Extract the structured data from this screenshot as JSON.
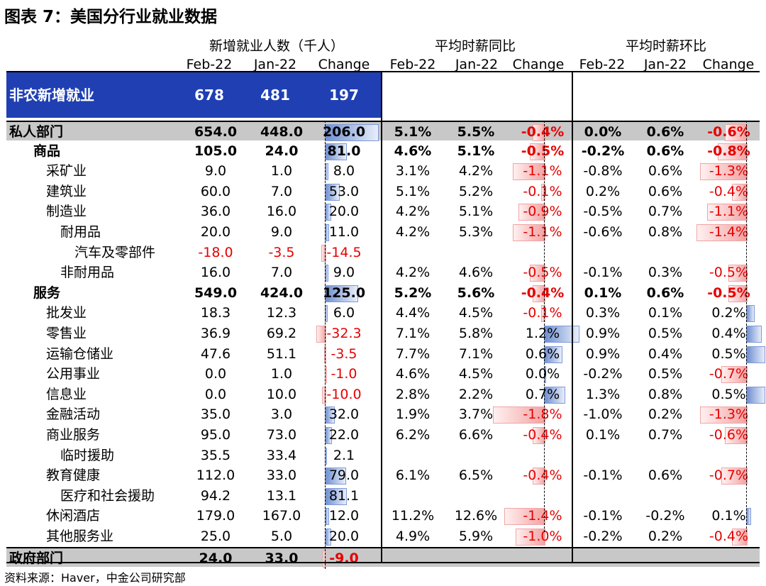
{
  "title": "图表 7：美国分行业就业数据",
  "group_headers": [
    "新增就业人数（千人）",
    "平均时薪同比",
    "平均时薪环比"
  ],
  "col_headers": [
    "Feb-22",
    "Jan-22",
    "Change",
    "Feb-22",
    "Jan-22",
    "Change",
    "Feb-22",
    "Jan-22",
    "Change"
  ],
  "summary_row": {
    "label": "非农新增就业",
    "feb": "678",
    "jan": "481",
    "chg": "197"
  },
  "rows": [
    {
      "label": "私人部门",
      "indent": 0,
      "style": "gray",
      "e1": "654.0",
      "e2": "448.0",
      "e3": "206.0",
      "e3v": 206.0,
      "y1": "5.1%",
      "y2": "5.5%",
      "y3": "-0.4%",
      "y3v": -0.4,
      "m1": "0.0%",
      "m2": "0.6%",
      "m3": "-0.6%",
      "m3v": -0.6
    },
    {
      "label": "商品",
      "indent": 1,
      "style": "bold",
      "e1": "105.0",
      "e2": "24.0",
      "e3": "81.0",
      "e3v": 81.0,
      "y1": "4.6%",
      "y2": "5.1%",
      "y3": "-0.5%",
      "y3v": -0.5,
      "m1": "-0.2%",
      "m2": "0.6%",
      "m3": "-0.8%",
      "m3v": -0.8
    },
    {
      "label": "采矿业",
      "indent": 2,
      "style": "",
      "e1": "9.0",
      "e2": "1.0",
      "e3": "8.0",
      "e3v": 8.0,
      "y1": "3.1%",
      "y2": "4.2%",
      "y3": "-1.1%",
      "y3v": -1.1,
      "m1": "-0.8%",
      "m2": "0.6%",
      "m3": "-1.3%",
      "m3v": -1.3
    },
    {
      "label": "建筑业",
      "indent": 2,
      "style": "",
      "e1": "60.0",
      "e2": "7.0",
      "e3": "53.0",
      "e3v": 53.0,
      "y1": "5.1%",
      "y2": "5.2%",
      "y3": "-0.1%",
      "y3v": -0.1,
      "m1": "0.2%",
      "m2": "0.6%",
      "m3": "-0.4%",
      "m3v": -0.4
    },
    {
      "label": "制造业",
      "indent": 2,
      "style": "",
      "e1": "36.0",
      "e2": "16.0",
      "e3": "20.0",
      "e3v": 20.0,
      "y1": "4.2%",
      "y2": "5.1%",
      "y3": "-0.9%",
      "y3v": -0.9,
      "m1": "-0.5%",
      "m2": "0.7%",
      "m3": "-1.1%",
      "m3v": -1.1
    },
    {
      "label": "耐用品",
      "indent": 3,
      "style": "",
      "e1": "20.0",
      "e2": "9.0",
      "e3": "11.0",
      "e3v": 11.0,
      "y1": "4.2%",
      "y2": "5.3%",
      "y3": "-1.1%",
      "y3v": -1.1,
      "m1": "-0.6%",
      "m2": "0.8%",
      "m3": "-1.4%",
      "m3v": -1.4
    },
    {
      "label": "汽车及零部件",
      "indent": 4,
      "style": "",
      "e1": "-18.0",
      "e2": "-3.5",
      "e3": "-14.5",
      "e3v": -14.5,
      "y1": "",
      "y2": "",
      "y3": "",
      "y3v": null,
      "m1": "",
      "m2": "",
      "m3": "",
      "m3v": null
    },
    {
      "label": "非耐用品",
      "indent": 3,
      "style": "",
      "e1": "16.0",
      "e2": "7.0",
      "e3": "9.0",
      "e3v": 9.0,
      "y1": "4.2%",
      "y2": "4.6%",
      "y3": "-0.5%",
      "y3v": -0.5,
      "m1": "-0.1%",
      "m2": "0.3%",
      "m3": "-0.5%",
      "m3v": -0.5
    },
    {
      "label": "服务",
      "indent": 1,
      "style": "bold",
      "e1": "549.0",
      "e2": "424.0",
      "e3": "125.0",
      "e3v": 125.0,
      "y1": "5.2%",
      "y2": "5.6%",
      "y3": "-0.4%",
      "y3v": -0.4,
      "m1": "0.1%",
      "m2": "0.6%",
      "m3": "-0.5%",
      "m3v": -0.5
    },
    {
      "label": "批发业",
      "indent": 2,
      "style": "",
      "e1": "18.3",
      "e2": "12.3",
      "e3": "6.0",
      "e3v": 6.0,
      "y1": "4.4%",
      "y2": "4.5%",
      "y3": "-0.1%",
      "y3v": -0.1,
      "m1": "0.3%",
      "m2": "0.1%",
      "m3": "0.2%",
      "m3v": 0.2
    },
    {
      "label": "零售业",
      "indent": 2,
      "style": "",
      "e1": "36.9",
      "e2": "69.2",
      "e3": "-32.3",
      "e3v": -32.3,
      "y1": "7.1%",
      "y2": "5.8%",
      "y3": "1.2%",
      "y3v": 1.2,
      "m1": "0.9%",
      "m2": "0.5%",
      "m3": "0.4%",
      "m3v": 0.4
    },
    {
      "label": "运输仓储业",
      "indent": 2,
      "style": "",
      "e1": "47.6",
      "e2": "51.1",
      "e3": "-3.5",
      "e3v": -3.5,
      "y1": "7.7%",
      "y2": "7.1%",
      "y3": "0.6%",
      "y3v": 0.6,
      "m1": "0.9%",
      "m2": "0.4%",
      "m3": "0.5%",
      "m3v": 0.5
    },
    {
      "label": "公用事业",
      "indent": 2,
      "style": "",
      "e1": "0.0",
      "e2": "1.0",
      "e3": "-1.0",
      "e3v": -1.0,
      "y1": "4.6%",
      "y2": "4.5%",
      "y3": "0.0%",
      "y3v": 0.0,
      "m1": "-0.2%",
      "m2": "0.5%",
      "m3": "-0.7%",
      "m3v": -0.7
    },
    {
      "label": "信息业",
      "indent": 2,
      "style": "",
      "e1": "0.0",
      "e2": "10.0",
      "e3": "-10.0",
      "e3v": -10.0,
      "y1": "2.8%",
      "y2": "2.2%",
      "y3": "0.7%",
      "y3v": 0.7,
      "m1": "1.3%",
      "m2": "0.8%",
      "m3": "0.5%",
      "m3v": 0.5
    },
    {
      "label": "金融活动",
      "indent": 2,
      "style": "",
      "e1": "35.0",
      "e2": "3.0",
      "e3": "32.0",
      "e3v": 32.0,
      "y1": "1.9%",
      "y2": "3.7%",
      "y3": "-1.8%",
      "y3v": -1.8,
      "m1": "-1.0%",
      "m2": "0.2%",
      "m3": "-1.3%",
      "m3v": -1.3
    },
    {
      "label": "商业服务",
      "indent": 2,
      "style": "",
      "e1": "95.0",
      "e2": "73.0",
      "e3": "22.0",
      "e3v": 22.0,
      "y1": "6.2%",
      "y2": "6.6%",
      "y3": "-0.4%",
      "y3v": -0.4,
      "m1": "0.1%",
      "m2": "0.7%",
      "m3": "-0.6%",
      "m3v": -0.6
    },
    {
      "label": "临时援助",
      "indent": 3,
      "style": "",
      "e1": "35.5",
      "e2": "33.4",
      "e3": "2.1",
      "e3v": 2.1,
      "y1": "",
      "y2": "",
      "y3": "",
      "y3v": null,
      "m1": "",
      "m2": "",
      "m3": "",
      "m3v": null
    },
    {
      "label": "教育健康",
      "indent": 2,
      "style": "",
      "e1": "112.0",
      "e2": "33.0",
      "e3": "79.0",
      "e3v": 79.0,
      "y1": "6.1%",
      "y2": "6.5%",
      "y3": "-0.4%",
      "y3v": -0.4,
      "m1": "-0.1%",
      "m2": "0.6%",
      "m3": "-0.7%",
      "m3v": -0.7
    },
    {
      "label": "医疗和社会援助",
      "indent": 3,
      "style": "",
      "e1": "94.2",
      "e2": "13.1",
      "e3": "81.1",
      "e3v": 81.1,
      "y1": "",
      "y2": "",
      "y3": "",
      "y3v": null,
      "m1": "",
      "m2": "",
      "m3": "",
      "m3v": null
    },
    {
      "label": "休闲酒店",
      "indent": 2,
      "style": "",
      "e1": "179.0",
      "e2": "167.0",
      "e3": "12.0",
      "e3v": 12.0,
      "y1": "11.2%",
      "y2": "12.6%",
      "y3": "-1.4%",
      "y3v": -1.4,
      "m1": "-0.1%",
      "m2": "-0.2%",
      "m3": "0.1%",
      "m3v": 0.1
    },
    {
      "label": "其他服务业",
      "indent": 2,
      "style": "",
      "e1": "25.0",
      "e2": "5.0",
      "e3": "20.0",
      "e3v": 20.0,
      "y1": "4.9%",
      "y2": "5.9%",
      "y3": "-1.0%",
      "y3v": -1.0,
      "m1": "-0.2%",
      "m2": "0.2%",
      "m3": "-0.4%",
      "m3v": -0.4
    },
    {
      "label": "政府部门",
      "indent": 0,
      "style": "gray",
      "e1": "24.0",
      "e2": "33.0",
      "e3": "-9.0",
      "e3v": -9.0,
      "y1": "",
      "y2": "",
      "y3": "",
      "y3v": null,
      "m1": "",
      "m2": "",
      "m3": "",
      "m3v": null
    }
  ],
  "footer": "资料来源：Haver，中金公司研究部",
  "colors": {
    "summary_bg": "#1f3fb3",
    "gray_bg": "#c8c8c8",
    "negative_text": "#e60000"
  }
}
